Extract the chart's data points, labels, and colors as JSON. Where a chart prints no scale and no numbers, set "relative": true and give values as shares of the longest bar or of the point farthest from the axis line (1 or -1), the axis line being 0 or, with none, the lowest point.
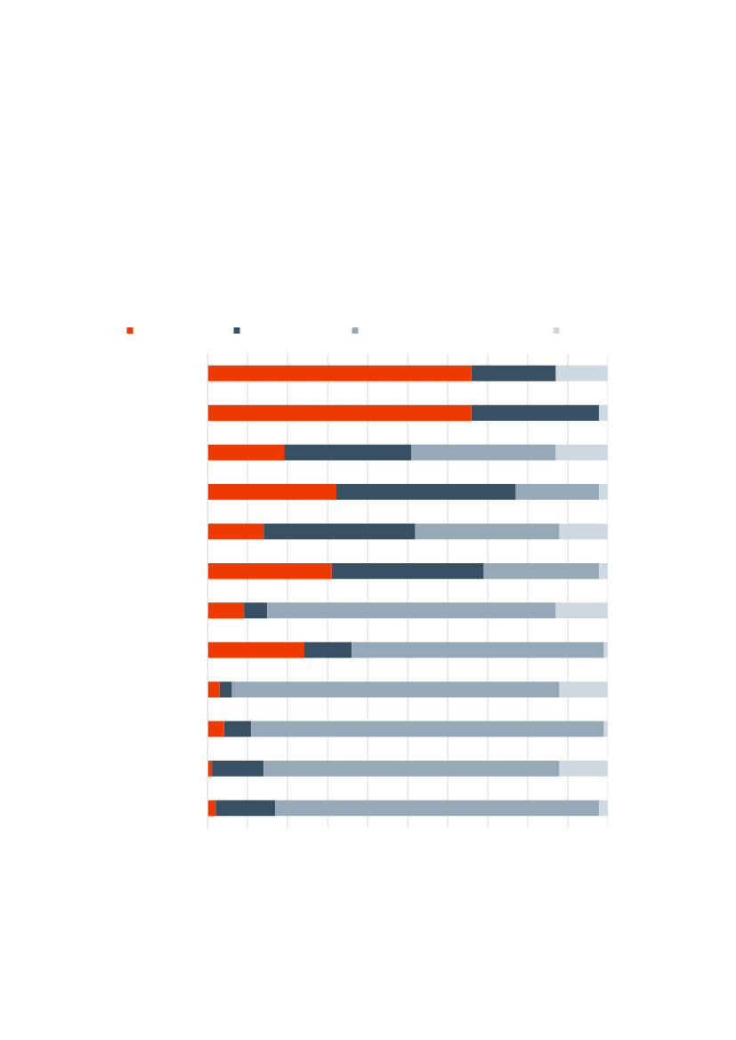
{
  "chart_data": {
    "type": "bar",
    "orientation": "horizontal",
    "stacked": true,
    "relative": true,
    "grid": "x",
    "categories": [
      null,
      null,
      null,
      null,
      null,
      null,
      null,
      null,
      null,
      null,
      null,
      null
    ],
    "series": [
      {
        "color": "#ee3a00",
        "values": [
          0.659,
          0.659,
          0.191,
          0.32,
          0.14,
          0.31,
          0.091,
          0.24,
          0.03,
          0.041,
          0.011,
          0.02
        ]
      },
      {
        "color": "#375064",
        "values": [
          0.211,
          0.319,
          0.318,
          0.45,
          0.379,
          0.38,
          0.058,
          0.12,
          0.031,
          0.068,
          0.129,
          0.149
        ]
      },
      {
        "color": "#96a9b7",
        "values": [
          0,
          0,
          0.361,
          0.208,
          0.36,
          0.288,
          0.721,
          0.63,
          0.818,
          0.881,
          0.739,
          0.809
        ]
      },
      {
        "color": "#cdd8e1",
        "values": [
          0.13,
          0.022,
          0.13,
          0.022,
          0.121,
          0.022,
          0.13,
          0.01,
          0.121,
          0.01,
          0.121,
          0.022
        ]
      }
    ]
  }
}
